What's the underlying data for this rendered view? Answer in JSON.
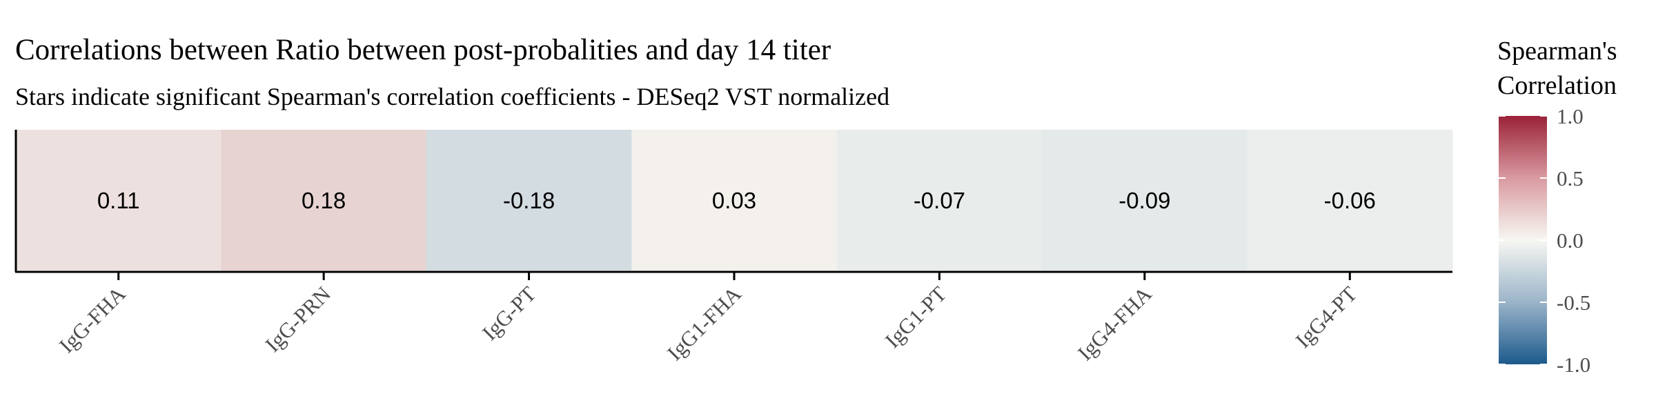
{
  "chart_data": {
    "type": "heatmap",
    "title": "Correlations between Ratio between post-probalities and day 14 titer",
    "subtitle": "Stars indicate significant Spearman's correlation coefficients - DESeq2 VST normalized",
    "xlabel": "",
    "ylabel": "",
    "categories": [
      "IgG-FHA",
      "IgG-PRN",
      "IgG-PT",
      "IgG1-FHA",
      "IgG1-PT",
      "IgG4-FHA",
      "IgG4-PT"
    ],
    "values": [
      0.11,
      0.18,
      -0.18,
      0.03,
      -0.07,
      -0.09,
      -0.06
    ],
    "value_labels": [
      "0.11",
      "0.18",
      "-0.18",
      "0.03",
      "-0.07",
      "-0.09",
      "-0.06"
    ],
    "legend": {
      "title_lines": [
        "Spearman's",
        "Correlation"
      ],
      "placement": "right",
      "range": [
        -1,
        1
      ],
      "ticks": [
        1.0,
        0.5,
        0.0,
        -0.5,
        -1.0
      ],
      "tick_labels": [
        "1.0",
        "0.5",
        "0.0",
        "-0.5",
        "-1.0"
      ]
    },
    "colors": {
      "low": "#1c5a8c",
      "mid": "#f7f7f2",
      "high": "#9a2238"
    },
    "grid": false
  }
}
